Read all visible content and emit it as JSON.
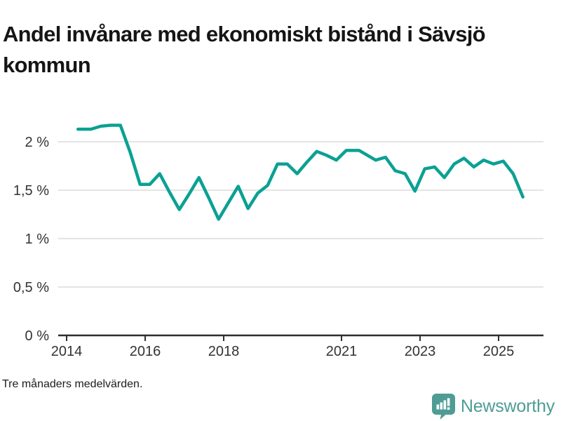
{
  "title": "Andel invånare med ekonomiskt bistånd i Sävsjö kommun",
  "footnote": "Tre månaders medelvärden.",
  "branding": {
    "name": "Newsworthy",
    "logo_icon": "bar-chart-speech-bubble",
    "color": "#4E9C95"
  },
  "colors": {
    "line": "#0AA194",
    "grid": "#DCDCDC",
    "axis": "#2E2E2E",
    "tick_text": "#333333",
    "title_text": "#151515"
  },
  "chart_data": {
    "type": "line",
    "title": "Andel invånare med ekonomiskt bistånd i Sävsjö kommun",
    "subtitle": "Tre månaders medelvärden.",
    "xlabel": "",
    "ylabel": "",
    "grid": "horizontal",
    "legend": "none",
    "x_axis": {
      "tick_values": [
        2014,
        2016,
        2018,
        2021,
        2023,
        2025
      ],
      "tick_labels": [
        "2014",
        "2016",
        "2018",
        "2021",
        "2023",
        "2025"
      ],
      "range": [
        2013.79,
        2026.1
      ]
    },
    "y_axis": {
      "tick_values": [
        0,
        0.5,
        1,
        1.5,
        2
      ],
      "tick_labels": [
        "0 %",
        "0,5 %",
        "1 %",
        "1,5 %",
        "2 %"
      ],
      "range": [
        0,
        2.3
      ],
      "unit": "%"
    },
    "series": [
      {
        "name": "Andel invånare med ekonomiskt bistånd, Sävsjö kommun",
        "color": "#0AA194",
        "points": [
          [
            2014.29,
            2.13
          ],
          [
            2014.62,
            2.13
          ],
          [
            2014.87,
            2.16
          ],
          [
            2015.12,
            2.17
          ],
          [
            2015.37,
            2.17
          ],
          [
            2015.62,
            1.89
          ],
          [
            2015.87,
            1.56
          ],
          [
            2016.12,
            1.56
          ],
          [
            2016.37,
            1.67
          ],
          [
            2016.62,
            1.48
          ],
          [
            2016.87,
            1.3
          ],
          [
            2017.12,
            1.46
          ],
          [
            2017.37,
            1.63
          ],
          [
            2017.62,
            1.42
          ],
          [
            2017.87,
            1.2
          ],
          [
            2018.12,
            1.37
          ],
          [
            2018.37,
            1.54
          ],
          [
            2018.62,
            1.31
          ],
          [
            2018.87,
            1.47
          ],
          [
            2019.12,
            1.55
          ],
          [
            2019.37,
            1.77
          ],
          [
            2019.62,
            1.77
          ],
          [
            2019.87,
            1.67
          ],
          [
            2020.12,
            1.79
          ],
          [
            2020.37,
            1.9
          ],
          [
            2020.62,
            1.86
          ],
          [
            2020.87,
            1.81
          ],
          [
            2021.12,
            1.91
          ],
          [
            2021.45,
            1.91
          ],
          [
            2021.87,
            1.81
          ],
          [
            2022.12,
            1.84
          ],
          [
            2022.37,
            1.7
          ],
          [
            2022.62,
            1.67
          ],
          [
            2022.87,
            1.49
          ],
          [
            2023.12,
            1.72
          ],
          [
            2023.37,
            1.74
          ],
          [
            2023.62,
            1.63
          ],
          [
            2023.87,
            1.77
          ],
          [
            2024.12,
            1.83
          ],
          [
            2024.37,
            1.74
          ],
          [
            2024.62,
            1.81
          ],
          [
            2024.87,
            1.77
          ],
          [
            2025.12,
            1.8
          ],
          [
            2025.37,
            1.67
          ],
          [
            2025.62,
            1.43
          ]
        ]
      }
    ]
  }
}
